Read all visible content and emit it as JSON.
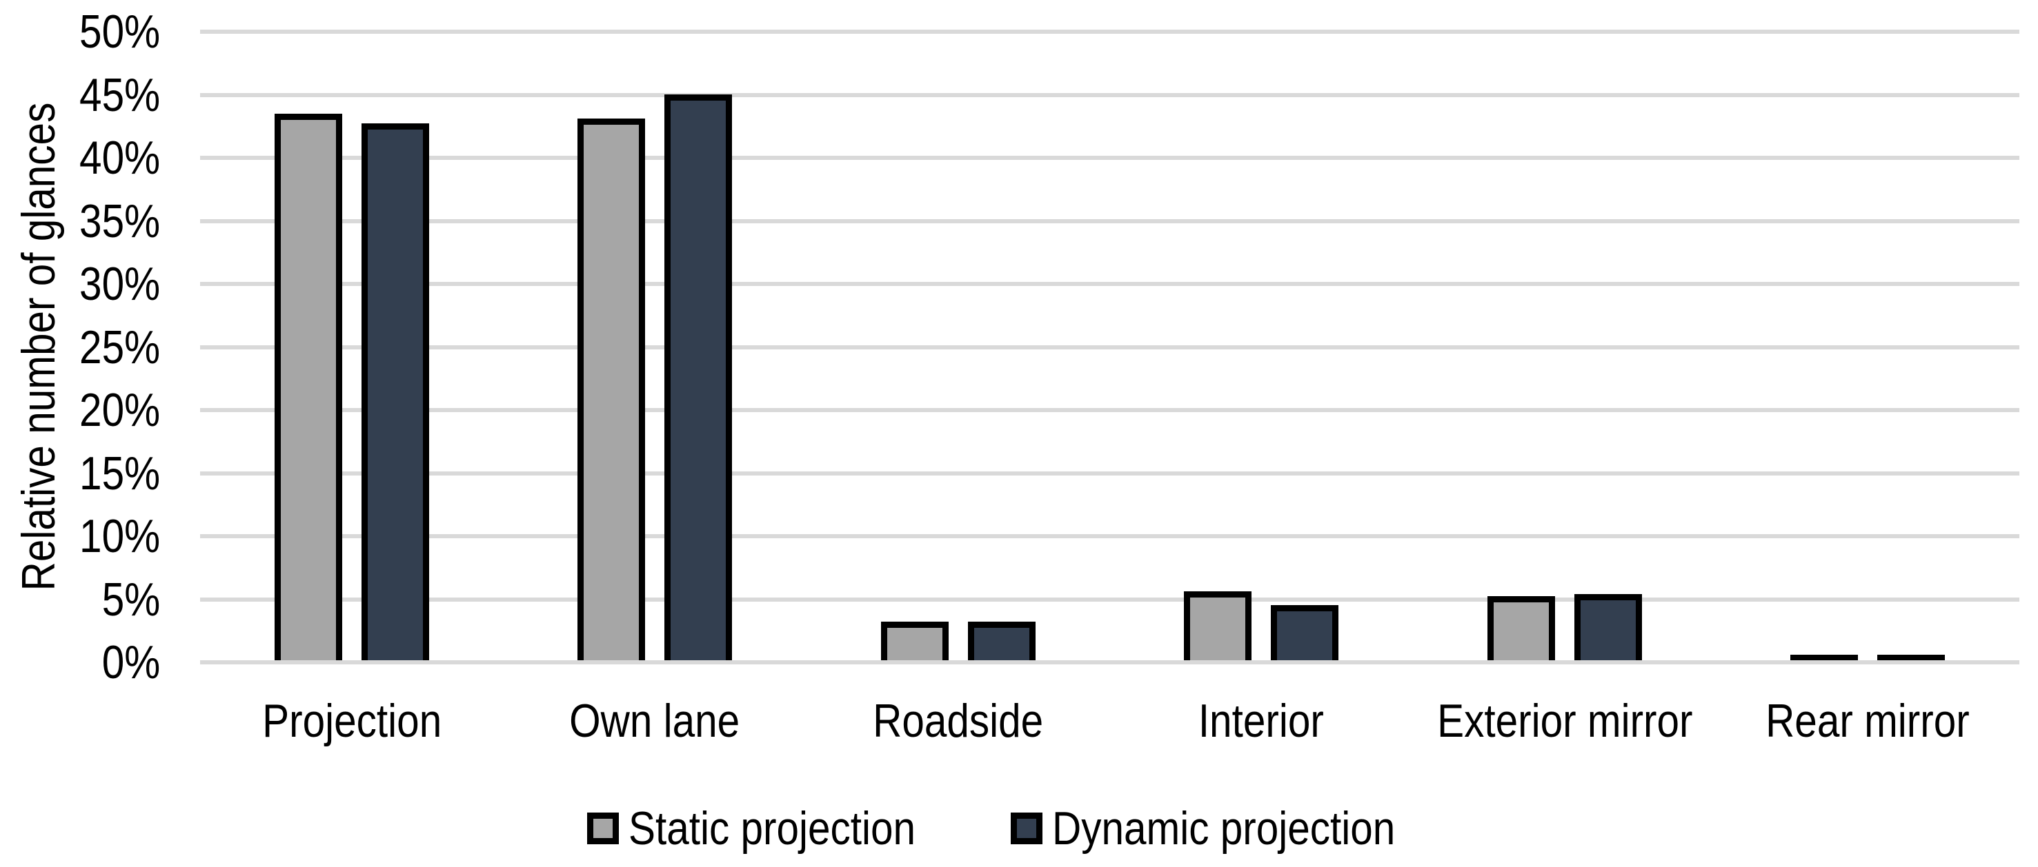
{
  "chart_data": {
    "type": "bar",
    "title": "",
    "xlabel": "",
    "ylabel": "Relative number of glances",
    "categories": [
      "Projection",
      "Own lane",
      "Roadside",
      "Interior",
      "Exterior mirror",
      "Rear mirror"
    ],
    "series": [
      {
        "name": "Static projection",
        "color": "#A6A6A6",
        "values": [
          43.3,
          42.9,
          3.0,
          5.4,
          5.0,
          0.4
        ]
      },
      {
        "name": "Dynamic projection",
        "color": "#333F50",
        "values": [
          42.5,
          44.8,
          3.0,
          4.3,
          5.2,
          0.4
        ]
      }
    ],
    "ylim": [
      0,
      50
    ],
    "ytick_step": 5,
    "yticks": [
      "0%",
      "5%",
      "10%",
      "15%",
      "20%",
      "25%",
      "30%",
      "35%",
      "40%",
      "45%",
      "50%"
    ],
    "grid": true,
    "gridline_color": "#D9D9D9",
    "bar_border_color": "#000000",
    "background_color": "#FFFFFF",
    "legend_position": "bottom"
  }
}
